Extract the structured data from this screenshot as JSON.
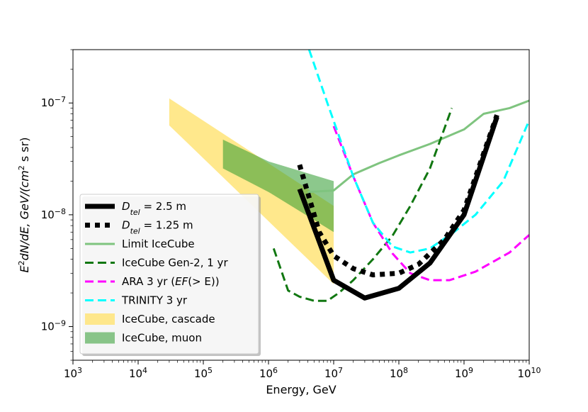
{
  "chart_data": {
    "type": "line",
    "xscale": "log",
    "yscale": "log",
    "xlim": [
      1000,
      10000000000
    ],
    "ylim": [
      5e-10,
      3e-07
    ],
    "xlabel": "Energy, GeV",
    "ylabel_parts": {
      "main": "E",
      "sup": "2",
      "mid": "dN/dE, GeV/(cm",
      "sup2": "2",
      "tail": " s sr)"
    },
    "xtick_labels": [
      {
        "base": "10",
        "exp": "3",
        "value": 1000
      },
      {
        "base": "10",
        "exp": "4",
        "value": 10000
      },
      {
        "base": "10",
        "exp": "5",
        "value": 100000
      },
      {
        "base": "10",
        "exp": "6",
        "value": 1000000
      },
      {
        "base": "10",
        "exp": "7",
        "value": 10000000
      },
      {
        "base": "10",
        "exp": "8",
        "value": 100000000
      },
      {
        "base": "10",
        "exp": "9",
        "value": 1000000000
      },
      {
        "base": "10",
        "exp": "10",
        "value": 10000000000
      }
    ],
    "ytick_labels": [
      {
        "base": "10",
        "exp": "−7",
        "value": 1e-07
      },
      {
        "base": "10",
        "exp": "−8",
        "value": 1e-08
      },
      {
        "base": "10",
        "exp": "−9",
        "value": 1e-09
      }
    ],
    "bands": [
      {
        "name": "IceCube, cascade",
        "color": "#FFE680",
        "opacity": 0.9,
        "upper": [
          [
            30000,
            1.1e-07
          ],
          [
            10000000,
            1.2e-08
          ]
        ],
        "lower": [
          [
            30000,
            6.3e-08
          ],
          [
            10000000,
            2.4e-09
          ]
        ]
      },
      {
        "name": "IceCube, muon",
        "color": "#2E9A2E",
        "opacity": 0.55,
        "upper": [
          [
            200000,
            4.7e-08
          ],
          [
            1000000,
            3e-08
          ],
          [
            10000000,
            2e-08
          ]
        ],
        "lower": [
          [
            200000,
            2.6e-08
          ],
          [
            1000000,
            1.6e-08
          ],
          [
            10000000,
            7e-09
          ]
        ]
      }
    ],
    "series": [
      {
        "name": "Limit IceCube",
        "color": "#7FC47F",
        "width": 3,
        "dash": "",
        "points": [
          [
            4000000,
            1.6e-08
          ],
          [
            10000000,
            1.65e-08
          ],
          [
            20000000,
            2.3e-08
          ],
          [
            50000000,
            2.9e-08
          ],
          [
            100000000,
            3.4e-08
          ],
          [
            300000000,
            4.3e-08
          ],
          [
            1000000000,
            5.8e-08
          ],
          [
            2000000000,
            8e-08
          ],
          [
            5000000000,
            9e-08
          ],
          [
            10000000000,
            1.05e-07
          ]
        ]
      },
      {
        "name": "IceCube Gen-2, 1 yr",
        "color": "#117711",
        "width": 3,
        "dash": "12,6",
        "points": [
          [
            1200000,
            5e-09
          ],
          [
            2000000,
            2.1e-09
          ],
          [
            3000000,
            1.85e-09
          ],
          [
            5000000,
            1.7e-09
          ],
          [
            8000000,
            1.7e-09
          ],
          [
            12000000,
            2e-09
          ],
          [
            20000000,
            2.6e-09
          ],
          [
            40000000,
            4e-09
          ],
          [
            80000000,
            6.5e-09
          ],
          [
            150000000,
            1.2e-08
          ],
          [
            300000000,
            2.6e-08
          ],
          [
            650000000,
            9e-08
          ]
        ]
      },
      {
        "name": "ARA 3 yr (EF(>E))",
        "color": "#FF00FF",
        "width": 3,
        "dash": "12,6",
        "points": [
          [
            10000000,
            6.2e-08
          ],
          [
            20000000,
            2.2e-08
          ],
          [
            40000000,
            8.5e-09
          ],
          [
            80000000,
            4.5e-09
          ],
          [
            150000000,
            3e-09
          ],
          [
            300000000,
            2.6e-09
          ],
          [
            600000000,
            2.6e-09
          ],
          [
            1500000000,
            3.1e-09
          ],
          [
            5000000000,
            4.6e-09
          ],
          [
            10000000000,
            6.6e-09
          ]
        ]
      },
      {
        "name": "TRINITY 3 yr",
        "color": "#00FFFF",
        "width": 3,
        "dash": "12,6",
        "points": [
          [
            4200000,
            3e-07
          ],
          [
            8000000,
            1e-07
          ],
          [
            20000000,
            2.2e-08
          ],
          [
            40000000,
            8.5e-09
          ],
          [
            80000000,
            5.2e-09
          ],
          [
            150000000,
            4.6e-09
          ],
          [
            300000000,
            5e-09
          ],
          [
            700000000,
            7e-09
          ],
          [
            1500000000,
            1e-08
          ],
          [
            4000000000,
            2e-08
          ],
          [
            10000000000,
            7e-08
          ]
        ]
      },
      {
        "name": "D_tel = 2.5 m",
        "color": "#000000",
        "width": 7,
        "dash": "",
        "points": [
          [
            3000000,
            1.7e-08
          ],
          [
            10000000,
            2.6e-09
          ],
          [
            30000000,
            1.8e-09
          ],
          [
            100000000,
            2.2e-09
          ],
          [
            300000000,
            3.7e-09
          ],
          [
            1000000000,
            1e-08
          ],
          [
            3200000000,
            7.5e-08
          ]
        ]
      },
      {
        "name": "D_tel = 1.25 m",
        "color": "#000000",
        "width": 7,
        "dash": "7,7",
        "points": [
          [
            3000000,
            2.8e-08
          ],
          [
            6000000,
            7e-09
          ],
          [
            10000000,
            4.3e-09
          ],
          [
            20000000,
            3.3e-09
          ],
          [
            40000000,
            2.9e-09
          ],
          [
            100000000,
            3e-09
          ],
          [
            200000000,
            3.6e-09
          ],
          [
            500000000,
            6e-09
          ],
          [
            1000000000,
            1.1e-08
          ],
          [
            3200000000,
            7.8e-08
          ]
        ]
      }
    ],
    "legend": {
      "position": "lower-left",
      "entries": [
        {
          "kind": "line",
          "color": "#000000",
          "width": 7,
          "dash": "",
          "label_pre": "D",
          "label_sub": "tel",
          "label_post": " = 2.5 m"
        },
        {
          "kind": "line",
          "color": "#000000",
          "width": 7,
          "dash": "7,7",
          "label_pre": "D",
          "label_sub": "tel",
          "label_post": " = 1.25 m"
        },
        {
          "kind": "line",
          "color": "#7FC47F",
          "width": 3,
          "dash": "",
          "label": "Limit IceCube"
        },
        {
          "kind": "line",
          "color": "#117711",
          "width": 3,
          "dash": "12,6",
          "label": "IceCube Gen-2, 1 yr"
        },
        {
          "kind": "line",
          "color": "#FF00FF",
          "width": 3,
          "dash": "12,6",
          "label_pre": "ARA 3 yr (",
          "label_it": "EF",
          "label_post": "(> E))"
        },
        {
          "kind": "line",
          "color": "#00FFFF",
          "width": 3,
          "dash": "12,6",
          "label": "TRINITY 3 yr"
        },
        {
          "kind": "patch",
          "color": "#FFE680",
          "opacity": 0.9,
          "label": "IceCube, cascade"
        },
        {
          "kind": "patch",
          "color": "#2E9A2E",
          "opacity": 0.55,
          "label": "IceCube, muon"
        }
      ]
    }
  }
}
